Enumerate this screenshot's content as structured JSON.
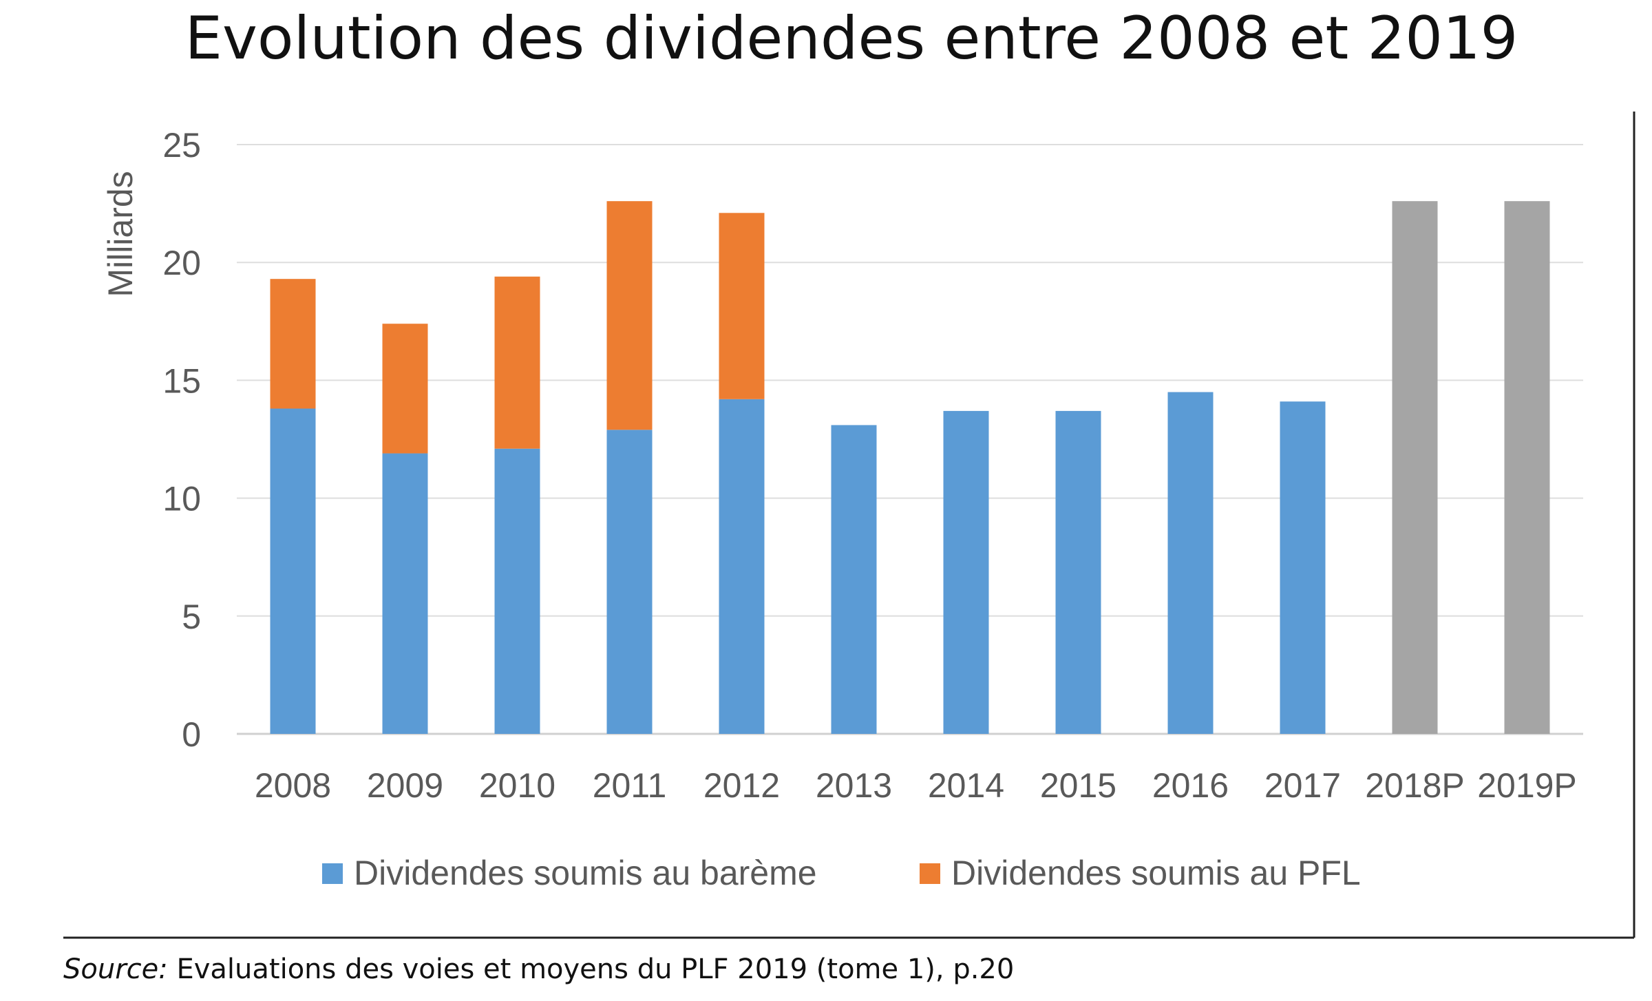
{
  "title": "Evolution des dividendes entre 2008 et 2019",
  "source": {
    "label": "Source:",
    "text": "Evaluations des voies et moyens du PLF 2019 (tome 1), p.20"
  },
  "chart_data": {
    "type": "bar",
    "stacked": true,
    "title": "Evolution des dividendes entre 2008 et 2019",
    "xlabel": "",
    "ylabel": "Milliards",
    "ylim": [
      0,
      25
    ],
    "yticks": [
      0,
      5,
      10,
      15,
      20,
      25
    ],
    "grid": true,
    "legend_position": "bottom",
    "categories": [
      "2008",
      "2009",
      "2010",
      "2011",
      "2012",
      "2013",
      "2014",
      "2015",
      "2016",
      "2017",
      "2018P",
      "2019P"
    ],
    "series": [
      {
        "name": "Dividendes soumis au barème",
        "color": "#5b9bd5",
        "values": [
          13.8,
          11.9,
          12.1,
          12.9,
          14.2,
          13.1,
          13.7,
          13.7,
          14.5,
          14.1,
          null,
          null
        ]
      },
      {
        "name": "Dividendes soumis au PFL",
        "color": "#ed7d31",
        "values": [
          5.5,
          5.5,
          7.3,
          9.7,
          7.9,
          0,
          0,
          0,
          0,
          0,
          null,
          null
        ]
      },
      {
        "name": "",
        "color": "#a5a5a5",
        "values": [
          null,
          null,
          null,
          null,
          null,
          null,
          null,
          null,
          null,
          null,
          22.6,
          22.6
        ]
      }
    ]
  }
}
